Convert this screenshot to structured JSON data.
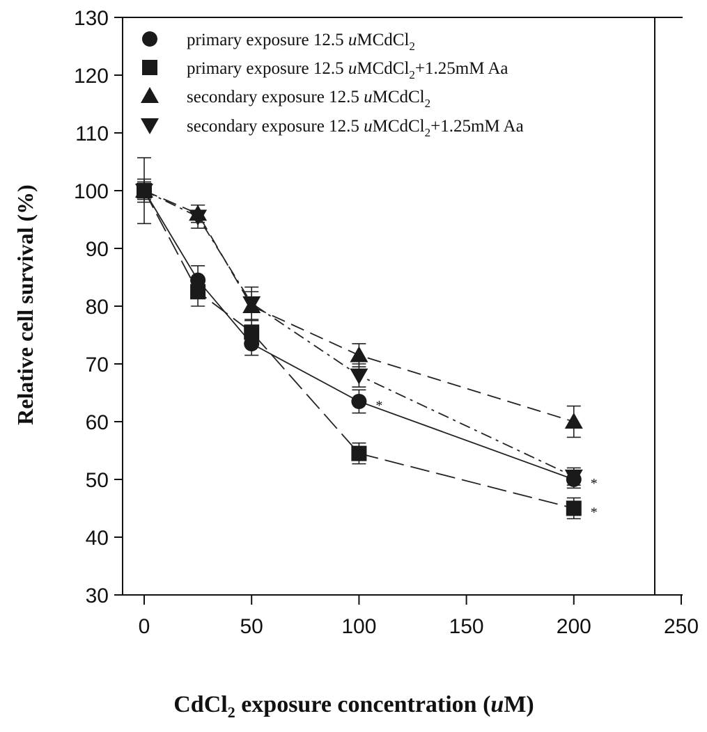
{
  "chart_data": {
    "type": "line",
    "xlabel": "CdCl2 exposure concentration (uM)",
    "ylabel": "Relative cell survival (%)",
    "xlim": [
      -10,
      250
    ],
    "ylim": [
      30,
      130
    ],
    "xticks": [
      0,
      50,
      100,
      150,
      200,
      250
    ],
    "yticks": [
      30,
      40,
      50,
      60,
      70,
      80,
      90,
      100,
      110,
      120,
      130
    ],
    "grid": false,
    "legend_position": "top-left",
    "x": [
      0,
      25,
      50,
      100,
      200
    ],
    "series": [
      {
        "name": "primary exposure 12.5 uMCdCl2",
        "marker": "circle",
        "line_style": "solid",
        "values": [
          100,
          84.5,
          73.5,
          63.5,
          50
        ],
        "errors": [
          1.5,
          2.5,
          2.0,
          2.0,
          1.5
        ]
      },
      {
        "name": "primary exposure 12.5 uMCdCl2+1.25mM Aa",
        "marker": "square",
        "line_style": "long-dash",
        "values": [
          100,
          82.5,
          75.5,
          54.5,
          45
        ],
        "errors": [
          1.5,
          2.5,
          2.0,
          1.8,
          1.8
        ]
      },
      {
        "name": "secondary exposure 12.5 uMCdCl2",
        "marker": "triangle-up",
        "line_style": "dash",
        "values": [
          100,
          96,
          80,
          71.5,
          60
        ],
        "errors": [
          5.7,
          1.5,
          2.5,
          2.0,
          2.7
        ]
      },
      {
        "name": "secondary exposure 12.5 uMCdCl2+1.25mM Aa",
        "marker": "triangle-down",
        "line_style": "dash-dot",
        "values": [
          100,
          95.5,
          80.5,
          68,
          50.5
        ],
        "errors": [
          2.0,
          2.0,
          2.8,
          2.0,
          1.5
        ]
      }
    ],
    "annotations": [
      {
        "text": "*",
        "x": 100,
        "y": 63.5
      },
      {
        "text": "*",
        "x": 200,
        "y": 50
      },
      {
        "text": "*",
        "x": 200,
        "y": 45
      }
    ],
    "legend_labels": [
      {
        "main": "primary exposure 12.5 ",
        "unit": "u",
        "compound": "MCdCl",
        "sub": "2",
        "suffix": ""
      },
      {
        "main": "primary exposure 12.5 ",
        "unit": "u",
        "compound": "MCdCl",
        "sub": "2",
        "suffix": "+1.25mM Aa"
      },
      {
        "main": "secondary exposure 12.5 ",
        "unit": "u",
        "compound": "MCdCl",
        "sub": "2",
        "suffix": ""
      },
      {
        "main": "secondary exposure 12.5 ",
        "unit": "u",
        "compound": "MCdCl",
        "sub": "2",
        "suffix": "+1.25mM Aa"
      }
    ],
    "xlabel_parts": {
      "pre": "CdCl",
      "sub": "2",
      "mid": " exposure concentration (",
      "unit": "u",
      "post": "M)"
    }
  }
}
